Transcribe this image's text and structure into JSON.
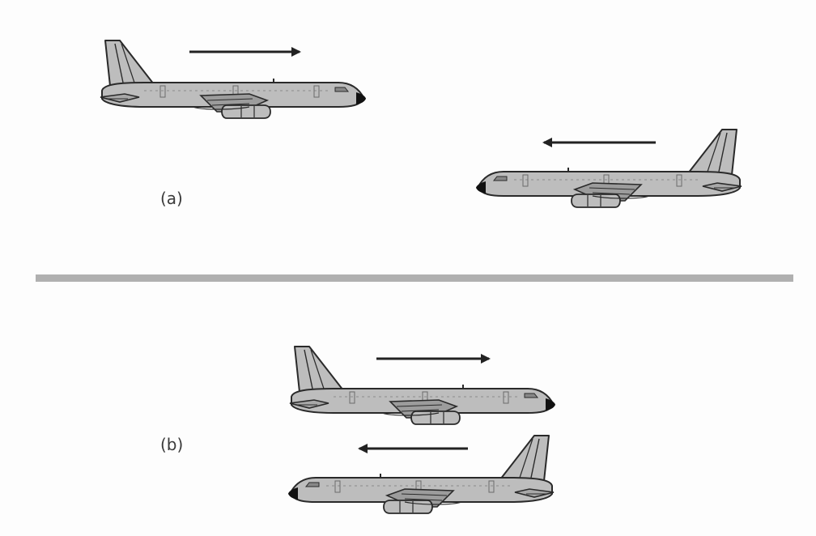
{
  "figure": {
    "panels": [
      {
        "label": "(a)"
      },
      {
        "label": "(b)"
      }
    ]
  },
  "colors": {
    "background": "#fdfdfd",
    "fuselage": "#bdbdbd",
    "outline": "#2a2a2a",
    "divider": "#b0b0b0",
    "arrow": "#222222"
  }
}
